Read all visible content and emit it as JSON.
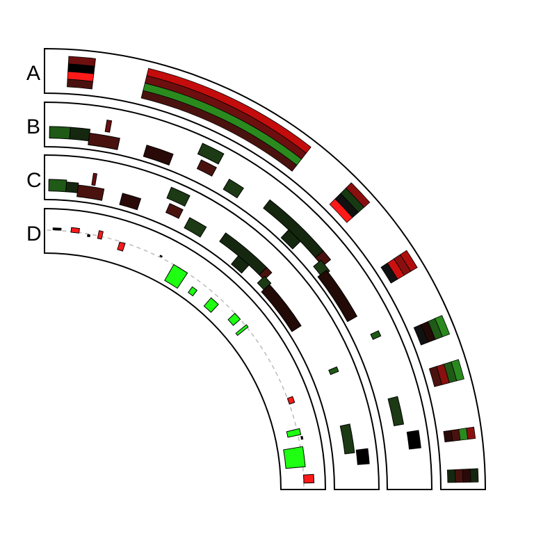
{
  "figure": {
    "type": "circular-genome-quarter-plot"
  },
  "tracks": [
    {
      "label": "A",
      "kind": "heatmap"
    },
    {
      "label": "B",
      "kind": "blocks"
    },
    {
      "label": "C",
      "kind": "blocks"
    },
    {
      "label": "D",
      "kind": "scatter-blocks"
    }
  ],
  "colors": {
    "black": "#000000",
    "dark_green": "#1f5a16",
    "forest": "#236e17",
    "mid_green": "#2a8a1e",
    "deep_green": "#15280f",
    "dark_red": "#4a120e",
    "maroon": "#6e0f0f",
    "red": "#c40c0c",
    "bright_red": "#ff1a1a",
    "dark_brown": "#240c06",
    "lime": "#1eff12",
    "baseline": "#bbbbbb"
  },
  "heatmap_A": [
    {
      "from": 0.03,
      "to": 0.07,
      "cells": [
        "#6e0f0f",
        "#000000",
        "#ff1a1a",
        "#4a120e"
      ]
    },
    {
      "from": 0.15,
      "to": 0.42,
      "cells": [
        "#c40c0c",
        "#6e0f0f",
        "#2a8a1e",
        "#4a120e"
      ]
    },
    {
      "from": 0.5,
      "to": 0.54,
      "cells": [
        "#8a1010",
        "#173a12",
        "#111111",
        "#ff1a1a"
      ]
    },
    {
      "from": 0.63,
      "to": 0.66,
      "cells": [
        "#b00e0e",
        "#8a1010",
        "#cc1010",
        "#111111"
      ]
    },
    {
      "from": 0.74,
      "to": 0.77,
      "cells": [
        "#2a8a1e",
        "#1f5a16",
        "#220a07",
        "#111111"
      ]
    },
    {
      "from": 0.81,
      "to": 0.84,
      "cells": [
        "#2a8a1e",
        "#1f5a16",
        "#8a1010",
        "#4a120e"
      ]
    },
    {
      "from": 0.913,
      "to": 0.93,
      "cells": [
        "#8a1010",
        "#2a8a1e",
        "#4a120e",
        "#2a0a08"
      ]
    },
    {
      "from": 0.975,
      "to": 0.995,
      "cells": [
        "#15280f",
        "#2a0a08",
        "#4a120e",
        "#15280f"
      ]
    }
  ],
  "blocks_B": [
    {
      "from": 0.003,
      "to": 0.04,
      "lo": 0.15,
      "hi": 0.45,
      "color": "#1f5a16"
    },
    {
      "from": 0.04,
      "to": 0.075,
      "lo": 0.15,
      "hi": 0.45,
      "color": "#15280f"
    },
    {
      "from": 0.075,
      "to": 0.13,
      "lo": 0.05,
      "hi": 0.35,
      "color": "#4a120e"
    },
    {
      "from": 0.102,
      "to": 0.11,
      "lo": 0.45,
      "hi": 0.75,
      "color": "#6e0f0f"
    },
    {
      "from": 0.18,
      "to": 0.23,
      "lo": 0.05,
      "hi": 0.35,
      "color": "#2a0a08"
    },
    {
      "from": 0.27,
      "to": 0.31,
      "lo": 0.6,
      "hi": 0.9,
      "color": "#1c3a14"
    },
    {
      "from": 0.28,
      "to": 0.31,
      "lo": 0.25,
      "hi": 0.5,
      "color": "#4a120e"
    },
    {
      "from": 0.34,
      "to": 0.37,
      "lo": 0.1,
      "hi": 0.4,
      "color": "#1c3a14"
    },
    {
      "from": 0.42,
      "to": 0.55,
      "lo": 0.28,
      "hi": 0.55,
      "color": "#15280f"
    },
    {
      "from": 0.48,
      "to": 0.51,
      "lo": 0.0,
      "hi": 0.28,
      "color": "#15280f"
    },
    {
      "from": 0.55,
      "to": 0.57,
      "lo": 0.28,
      "hi": 0.55,
      "color": "#4a120e"
    },
    {
      "from": 0.56,
      "to": 0.585,
      "lo": 0.1,
      "hi": 0.35,
      "color": "#1c3a14"
    },
    {
      "from": 0.58,
      "to": 0.68,
      "lo": 0.02,
      "hi": 0.3,
      "color": "#220a07"
    },
    {
      "from": 0.72,
      "to": 0.73,
      "lo": 0.4,
      "hi": 0.62,
      "color": "#1f5a16"
    },
    {
      "from": 0.84,
      "to": 0.89,
      "lo": 0.25,
      "hi": 0.5,
      "color": "#1c3a14"
    },
    {
      "from": 0.905,
      "to": 0.935,
      "lo": 0.55,
      "hi": 0.85,
      "color": "#000000"
    }
  ],
  "blocks_C": [
    {
      "from": 0.003,
      "to": 0.04,
      "lo": 0.15,
      "hi": 0.45,
      "color": "#1f5a16"
    },
    {
      "from": 0.04,
      "to": 0.065,
      "lo": 0.15,
      "hi": 0.4,
      "color": "#15280f"
    },
    {
      "from": 0.065,
      "to": 0.12,
      "lo": 0.05,
      "hi": 0.35,
      "color": "#4a120e"
    },
    {
      "from": 0.093,
      "to": 0.1,
      "lo": 0.4,
      "hi": 0.7,
      "color": "#6e0f0f"
    },
    {
      "from": 0.16,
      "to": 0.2,
      "lo": 0.05,
      "hi": 0.35,
      "color": "#2a0a08"
    },
    {
      "from": 0.25,
      "to": 0.29,
      "lo": 0.6,
      "hi": 0.9,
      "color": "#1c3a14"
    },
    {
      "from": 0.26,
      "to": 0.29,
      "lo": 0.25,
      "hi": 0.5,
      "color": "#4a120e"
    },
    {
      "from": 0.31,
      "to": 0.35,
      "lo": 0.1,
      "hi": 0.4,
      "color": "#1c3a14"
    },
    {
      "from": 0.39,
      "to": 0.5,
      "lo": 0.28,
      "hi": 0.55,
      "color": "#15280f"
    },
    {
      "from": 0.44,
      "to": 0.47,
      "lo": 0.0,
      "hi": 0.28,
      "color": "#15280f"
    },
    {
      "from": 0.5,
      "to": 0.515,
      "lo": 0.28,
      "hi": 0.55,
      "color": "#4a120e"
    },
    {
      "from": 0.51,
      "to": 0.53,
      "lo": 0.1,
      "hi": 0.35,
      "color": "#1c3a14"
    },
    {
      "from": 0.53,
      "to": 0.64,
      "lo": 0.02,
      "hi": 0.3,
      "color": "#220a07"
    },
    {
      "from": 0.75,
      "to": 0.76,
      "lo": 0.4,
      "hi": 0.62,
      "color": "#1f5a16"
    },
    {
      "from": 0.87,
      "to": 0.93,
      "lo": 0.25,
      "hi": 0.5,
      "color": "#1c3a14"
    },
    {
      "from": 0.925,
      "to": 0.955,
      "lo": 0.55,
      "hi": 0.85,
      "color": "#000000"
    }
  ],
  "blocks_D": [
    {
      "from": 0.015,
      "to": 0.035,
      "lo": 0.53,
      "hi": 0.58,
      "color": "#000000"
    },
    {
      "from": 0.06,
      "to": 0.08,
      "lo": 0.5,
      "hi": 0.62,
      "color": "#ff1a1a"
    },
    {
      "from": 0.102,
      "to": 0.108,
      "lo": 0.45,
      "hi": 0.5,
      "color": "#000000"
    },
    {
      "from": 0.128,
      "to": 0.138,
      "lo": 0.45,
      "hi": 0.65,
      "color": "#ff1a1a"
    },
    {
      "from": 0.184,
      "to": 0.198,
      "lo": 0.3,
      "hi": 0.5,
      "color": "#ff1a1a"
    },
    {
      "from": 0.29,
      "to": 0.295,
      "lo": 0.54,
      "hi": 0.57,
      "color": "#000000"
    },
    {
      "from": 0.33,
      "to": 0.37,
      "lo": 0.05,
      "hi": 0.52,
      "color": "#1eff12"
    },
    {
      "from": 0.4,
      "to": 0.415,
      "lo": 0.12,
      "hi": 0.3,
      "color": "#1eff12"
    },
    {
      "from": 0.455,
      "to": 0.48,
      "lo": 0.1,
      "hi": 0.38,
      "color": "#1eff12"
    },
    {
      "from": 0.525,
      "to": 0.545,
      "lo": 0.28,
      "hi": 0.52,
      "color": "#1eff12"
    },
    {
      "from": 0.565,
      "to": 0.572,
      "lo": 0.2,
      "hi": 0.55,
      "color": "#1eff12"
    },
    {
      "from": 0.775,
      "to": 0.79,
      "lo": 0.52,
      "hi": 0.66,
      "color": "#ff1a1a"
    },
    {
      "from": 0.855,
      "to": 0.87,
      "lo": 0.25,
      "hi": 0.59,
      "color": "#1eff12"
    },
    {
      "from": 0.875,
      "to": 0.882,
      "lo": 0.58,
      "hi": 0.62,
      "color": "#000000"
    },
    {
      "from": 0.9,
      "to": 0.95,
      "lo": 0.08,
      "hi": 0.58,
      "color": "#1eff12"
    },
    {
      "from": 0.97,
      "to": 0.99,
      "lo": 0.52,
      "hi": 0.78,
      "color": "#ff1a1a"
    }
  ]
}
